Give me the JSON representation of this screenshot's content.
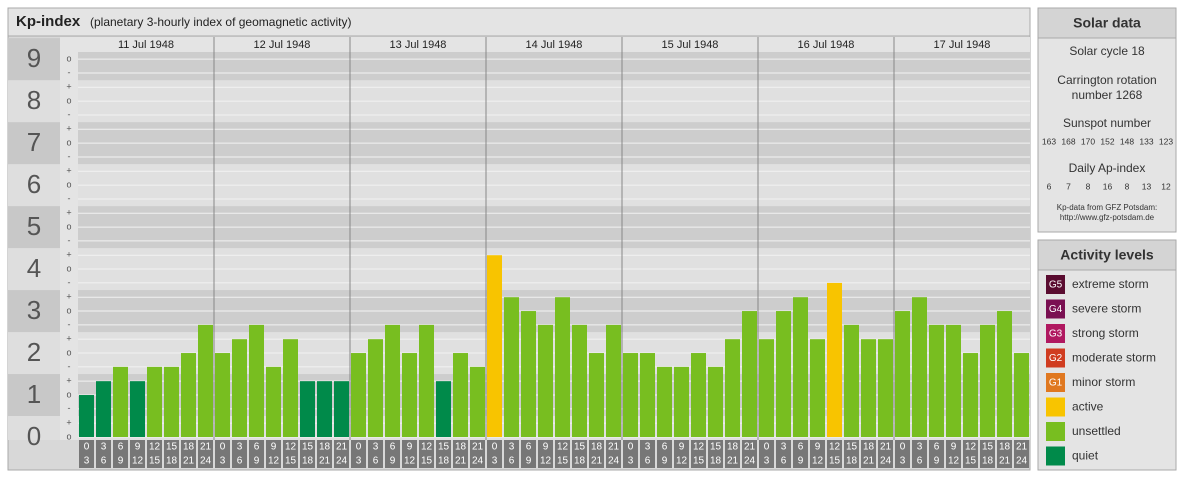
{
  "chart_data": {
    "type": "bar",
    "title": "Kp-index",
    "subtitle": "(planetary 3-hourly index of geomagnetic activity)",
    "ylim": [
      0,
      9.17
    ],
    "yticks": [
      0,
      1,
      2,
      3,
      4,
      5,
      6,
      7,
      8,
      9
    ],
    "minor_yticks": [
      {
        "value": 0,
        "label": "o"
      },
      {
        "value": 0.33,
        "label": "+"
      },
      {
        "value": 0.67,
        "label": "-"
      },
      {
        "value": 1,
        "label": "o"
      },
      {
        "value": 1.33,
        "label": "+"
      },
      {
        "value": 1.67,
        "label": "-"
      },
      {
        "value": 2,
        "label": "o"
      },
      {
        "value": 2.33,
        "label": "+"
      },
      {
        "value": 2.67,
        "label": "-"
      },
      {
        "value": 3,
        "label": "o"
      },
      {
        "value": 3.33,
        "label": "+"
      },
      {
        "value": 3.67,
        "label": "-"
      },
      {
        "value": 4,
        "label": "o"
      },
      {
        "value": 4.33,
        "label": "+"
      },
      {
        "value": 4.67,
        "label": "-"
      },
      {
        "value": 5,
        "label": "o"
      },
      {
        "value": 5.33,
        "label": "+"
      },
      {
        "value": 5.67,
        "label": "-"
      },
      {
        "value": 6,
        "label": "o"
      },
      {
        "value": 6.33,
        "label": "+"
      },
      {
        "value": 6.67,
        "label": "-"
      },
      {
        "value": 7,
        "label": "o"
      },
      {
        "value": 7.33,
        "label": "+"
      },
      {
        "value": 7.67,
        "label": "-"
      },
      {
        "value": 8,
        "label": "o"
      },
      {
        "value": 8.33,
        "label": "+"
      },
      {
        "value": 8.67,
        "label": "-"
      },
      {
        "value": 9,
        "label": "o"
      }
    ],
    "grid": true,
    "hour_ranges": [
      [
        "0",
        "3"
      ],
      [
        "3",
        "6"
      ],
      [
        "6",
        "9"
      ],
      [
        "9",
        "12"
      ],
      [
        "12",
        "15"
      ],
      [
        "15",
        "18"
      ],
      [
        "18",
        "21"
      ],
      [
        "21",
        "24"
      ]
    ],
    "days": [
      {
        "label": "11 Jul 1948",
        "values": [
          1,
          1.33,
          1.67,
          1.33,
          1.67,
          1.67,
          2,
          2.67
        ],
        "colors": [
          "#008a4a",
          "#008a4a",
          "#78be20",
          "#008a4a",
          "#78be20",
          "#78be20",
          "#78be20",
          "#78be20"
        ]
      },
      {
        "label": "12 Jul 1948",
        "values": [
          2,
          2.33,
          2.67,
          1.67,
          2.33,
          1.33,
          1.33,
          1.33
        ],
        "colors": [
          "#78be20",
          "#78be20",
          "#78be20",
          "#78be20",
          "#78be20",
          "#008a4a",
          "#008a4a",
          "#008a4a"
        ]
      },
      {
        "label": "13 Jul 1948",
        "values": [
          2,
          2.33,
          2.67,
          2,
          2.67,
          1.33,
          2,
          1.67
        ],
        "colors": [
          "#78be20",
          "#78be20",
          "#78be20",
          "#78be20",
          "#78be20",
          "#008a4a",
          "#78be20",
          "#78be20"
        ]
      },
      {
        "label": "14 Jul 1948",
        "values": [
          4.33,
          3.33,
          3,
          2.67,
          3.33,
          2.67,
          2,
          2.67
        ],
        "colors": [
          "#f8c400",
          "#78be20",
          "#78be20",
          "#78be20",
          "#78be20",
          "#78be20",
          "#78be20",
          "#78be20"
        ]
      },
      {
        "label": "15 Jul 1948",
        "values": [
          2,
          2,
          1.67,
          1.67,
          2,
          1.67,
          2.33,
          3
        ],
        "colors": [
          "#78be20",
          "#78be20",
          "#78be20",
          "#78be20",
          "#78be20",
          "#78be20",
          "#78be20",
          "#78be20"
        ]
      },
      {
        "label": "16 Jul 1948",
        "values": [
          2.33,
          3,
          3.33,
          2.33,
          3.67,
          2.67,
          2.33,
          2.33
        ],
        "colors": [
          "#78be20",
          "#78be20",
          "#78be20",
          "#78be20",
          "#f8c400",
          "#78be20",
          "#78be20",
          "#78be20"
        ]
      },
      {
        "label": "17 Jul 1948",
        "values": [
          3,
          3.33,
          2.67,
          2.67,
          2,
          2.67,
          3,
          2
        ],
        "colors": [
          "#78be20",
          "#78be20",
          "#78be20",
          "#78be20",
          "#78be20",
          "#78be20",
          "#78be20",
          "#78be20"
        ]
      }
    ]
  },
  "solar_data": {
    "title": "Solar data",
    "cycle": "Solar cycle 18",
    "carrington": [
      "Carrington rotation",
      "number 1268"
    ],
    "sunspot_title": "Sunspot number",
    "sunspot": [
      "163",
      "168",
      "170",
      "152",
      "148",
      "133",
      "123"
    ],
    "ap_title": "Daily Ap-index",
    "ap": [
      "6",
      "7",
      "8",
      "16",
      "8",
      "13",
      "12"
    ],
    "source": [
      "Kp-data from GFZ Potsdam:",
      "http://www.gfz-potsdam.de"
    ]
  },
  "activity_levels": {
    "title": "Activity levels",
    "items": [
      {
        "code": "G5",
        "label": "extreme storm",
        "color": "#5a0c30"
      },
      {
        "code": "G4",
        "label": "severe storm",
        "color": "#7a1052"
      },
      {
        "code": "G3",
        "label": "strong storm",
        "color": "#b01860"
      },
      {
        "code": "G2",
        "label": "moderate storm",
        "color": "#d03c20"
      },
      {
        "code": "G1",
        "label": "minor storm",
        "color": "#e07820"
      },
      {
        "code": null,
        "label": "active",
        "color": "#f8c400"
      },
      {
        "code": null,
        "label": "unsettled",
        "color": "#78be20"
      },
      {
        "code": null,
        "label": "quiet",
        "color": "#008a4a"
      }
    ]
  }
}
